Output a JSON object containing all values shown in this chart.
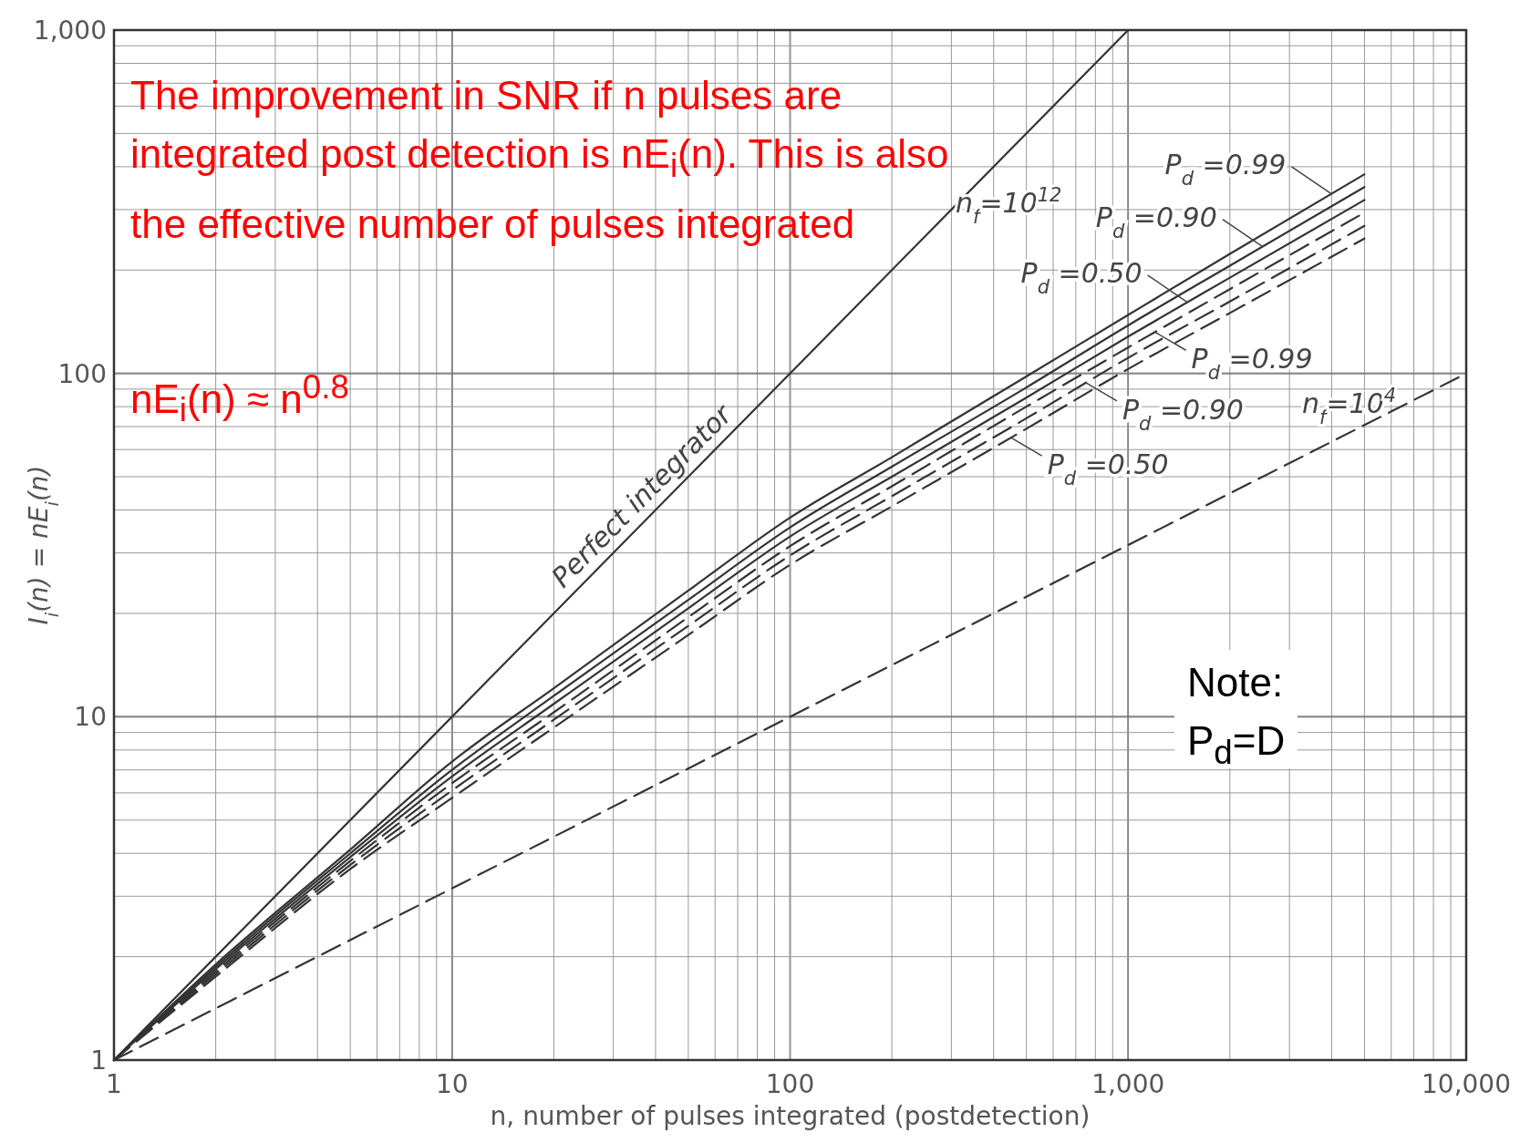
{
  "chart_data": {
    "type": "line",
    "xlabel": "n, number of pulses integrated (postdetection)",
    "ylabel": "I$_{i}$(n) = nE$_{i}$(n)",
    "log": "xy",
    "grid": true,
    "xlim": [
      1,
      10000
    ],
    "ylim": [
      1,
      1000
    ],
    "xticks": [
      1,
      10,
      100,
      {
        "value": 1000,
        "label": "1,000"
      },
      {
        "value": 10000,
        "label": "10,000"
      }
    ],
    "yticks": [
      1,
      10,
      100,
      {
        "value": 1000,
        "label": "1,000"
      }
    ],
    "x": [
      1,
      2,
      5,
      10,
      20,
      50,
      100,
      200,
      500,
      1000,
      2000,
      5000
    ],
    "series": [
      {
        "color": "#333333",
        "line_style": "solid",
        "x": [
          1,
          1000
        ],
        "values": [
          1,
          1000
        ]
      },
      {
        "color": "#333333",
        "line_style": "solid",
        "values": [
          1,
          1.9,
          4.1,
          7.4,
          12.1,
          23.3,
          38,
          57,
          98,
          148,
          223,
          380
        ]
      },
      {
        "color": "#333333",
        "line_style": "solid",
        "values": [
          1,
          1.87,
          4.0,
          7.0,
          11.5,
          21.9,
          35.6,
          53.5,
          91,
          138,
          206,
          349
        ]
      },
      {
        "color": "#333333",
        "line_style": "solid",
        "values": [
          1,
          1.84,
          3.9,
          6.7,
          10.9,
          20.7,
          33.5,
          50,
          85,
          128,
          190,
          320
        ]
      },
      {
        "color": "#333333",
        "line_style": "dashed",
        "values": [
          1,
          1.81,
          3.8,
          6.4,
          10.3,
          19.5,
          31.4,
          46.9,
          80,
          119,
          176,
          294
        ]
      },
      {
        "color": "#333333",
        "line_style": "dashed",
        "values": [
          1,
          1.78,
          3.7,
          6.1,
          9.8,
          18.4,
          29.5,
          43.9,
          74,
          111,
          162,
          269
        ]
      },
      {
        "color": "#333333",
        "line_style": "dashed",
        "values": [
          1,
          1.75,
          3.6,
          5.8,
          9.3,
          17.3,
          27.7,
          41,
          69,
          103,
          150,
          247
        ]
      },
      {
        "color": "#333333",
        "line_style": "dashed",
        "x": [
          1,
          10000
        ],
        "values": [
          1,
          100
        ]
      }
    ],
    "annotations": [
      "The improvement in SNR if n pulses are integrated post detection is nE$_{i}$(n). This is also the effective number of pulses integrated",
      "nE$_{i}$(n) ≈ n$^{0.8}$",
      "Note:\nP$_{d}$=D",
      "n$_{f}$=10$^{12}$",
      "n$_{f}$=10$^{4}$",
      {
        "text": "Perfect integrator",
        "x": 40,
        "y": 40
      },
      {
        "text": "P$_{d}$ =0.99",
        "x": 4000,
        "y": 333
      },
      {
        "text": "P$_{d}$ =0.90",
        "x": 2500,
        "y": 234
      },
      {
        "text": "P$_{d}$ =0.50",
        "x": 1500,
        "y": 161
      },
      {
        "text": "P$_{d}$ =0.99",
        "x": 1200,
        "y": 132
      },
      {
        "text": "P$_{d}$ =0.90",
        "x": 750,
        "y": 94
      },
      {
        "text": "P$_{d}$ =0.50",
        "x": 450,
        "y": 65
      }
    ]
  }
}
